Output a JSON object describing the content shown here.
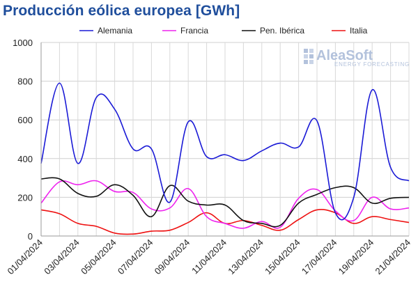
{
  "chart_data": {
    "type": "line",
    "title": "Producción eólica europea [GWh]",
    "xlabel": "",
    "ylabel": "",
    "ylim": [
      0,
      1000
    ],
    "yticks": [
      0,
      200,
      400,
      600,
      800,
      1000
    ],
    "grid": true,
    "legend_position": "top",
    "x": [
      "01/04/2024",
      "02/04/2024",
      "03/04/2024",
      "04/04/2024",
      "05/04/2024",
      "06/04/2024",
      "07/04/2024",
      "08/04/2024",
      "09/04/2024",
      "10/04/2024",
      "11/04/2024",
      "12/04/2024",
      "13/04/2024",
      "14/04/2024",
      "15/04/2024",
      "16/04/2024",
      "17/04/2024",
      "18/04/2024",
      "19/04/2024",
      "20/04/2024",
      "21/04/2024"
    ],
    "xtick_labels": [
      "01/04/2024",
      "03/04/2024",
      "05/04/2024",
      "07/04/2024",
      "09/04/2024",
      "11/04/2024",
      "13/04/2024",
      "15/04/2024",
      "17/04/2024",
      "19/04/2024",
      "21/04/2024"
    ],
    "series": [
      {
        "name": "Alemania",
        "color": "#1a1ad6",
        "values": [
          375,
          790,
          375,
          715,
          655,
          450,
          450,
          175,
          590,
          410,
          420,
          390,
          440,
          480,
          460,
          595,
          120,
          200,
          755,
          355,
          285
        ]
      },
      {
        "name": "Francia",
        "color": "#ee22ee",
        "values": [
          170,
          280,
          265,
          285,
          230,
          225,
          140,
          145,
          245,
          100,
          65,
          40,
          75,
          45,
          195,
          240,
          130,
          80,
          200,
          140,
          145
        ]
      },
      {
        "name": "Pen. Ibérica",
        "color": "#111111",
        "values": [
          295,
          295,
          220,
          205,
          265,
          210,
          100,
          260,
          180,
          160,
          160,
          80,
          65,
          55,
          170,
          215,
          250,
          250,
          170,
          195,
          200
        ]
      },
      {
        "name": "Italia",
        "color": "#ee1111",
        "values": [
          135,
          115,
          65,
          50,
          15,
          10,
          25,
          30,
          70,
          120,
          65,
          80,
          55,
          30,
          85,
          135,
          120,
          65,
          100,
          85,
          70
        ]
      }
    ]
  },
  "logo": {
    "name": "AleaSoft",
    "tagline": "ENERGY FORECASTING"
  }
}
